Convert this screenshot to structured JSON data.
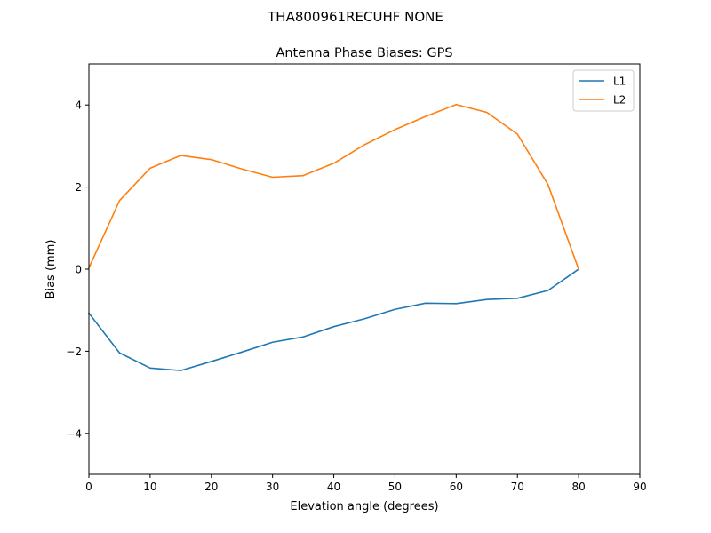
{
  "figure": {
    "suptitle": "THA800961RECUHF NONE"
  },
  "chart_data": {
    "type": "line",
    "title": "Antenna Phase Biases: GPS",
    "xlabel": "Elevation angle (degrees)",
    "ylabel": "Bias (mm)",
    "xlim": [
      0,
      90
    ],
    "ylim": [
      -5,
      5
    ],
    "xticks": [
      0,
      10,
      20,
      30,
      40,
      50,
      60,
      70,
      80,
      90
    ],
    "yticks": [
      -4,
      -2,
      0,
      2,
      4
    ],
    "xtick_labels": [
      "0",
      "10",
      "20",
      "30",
      "40",
      "50",
      "60",
      "70",
      "80",
      "90"
    ],
    "ytick_labels": [
      "−4",
      "−2",
      "0",
      "2",
      "4"
    ],
    "grid": false,
    "legend_position": "top-right",
    "x": [
      0,
      5,
      10,
      15,
      20,
      25,
      30,
      35,
      40,
      45,
      50,
      55,
      60,
      65,
      70,
      75,
      80
    ],
    "series": [
      {
        "name": "L1",
        "color": "#1f77b4",
        "values": [
          -1.07,
          -2.04,
          -2.41,
          -2.47,
          -2.25,
          -2.02,
          -1.78,
          -1.65,
          -1.4,
          -1.21,
          -0.98,
          -0.83,
          -0.84,
          -0.74,
          -0.71,
          -0.52,
          0.0
        ]
      },
      {
        "name": "L2",
        "color": "#ff7f0e",
        "values": [
          0.03,
          1.67,
          2.46,
          2.77,
          2.67,
          2.44,
          2.24,
          2.28,
          2.58,
          3.03,
          3.4,
          3.72,
          4.01,
          3.82,
          3.29,
          2.06,
          0.0
        ]
      }
    ]
  }
}
